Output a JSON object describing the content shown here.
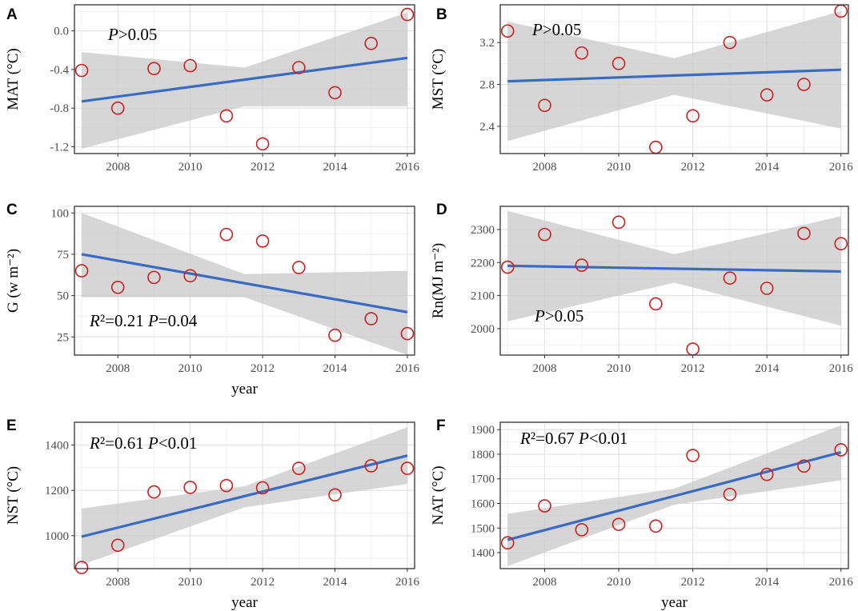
{
  "chart_data": [
    {
      "type": "scatter",
      "panel": "A",
      "ylabel": "MAT (°C)",
      "xlabel": "",
      "annotation": {
        "italic": "P",
        "rest": ">0.05"
      },
      "x": [
        2007,
        2008,
        2009,
        2010,
        2011,
        2012,
        2013,
        2014,
        2015,
        2016
      ],
      "values": [
        -0.41,
        -0.8,
        -0.39,
        -0.36,
        -0.88,
        -1.17,
        -0.38,
        -0.64,
        -0.13,
        0.17
      ],
      "fit": {
        "x": [
          2007,
          2016
        ],
        "y": [
          -0.73,
          -0.28
        ]
      },
      "band": {
        "x": [
          2007,
          2011.5,
          2016
        ],
        "lower": [
          -1.22,
          -0.78,
          -0.78
        ],
        "upper": [
          -0.22,
          -0.38,
          0.19
        ]
      },
      "xlim": [
        2006.8,
        2016.2
      ],
      "ylim": [
        -1.27,
        0.27
      ],
      "xticks": [
        2008,
        2010,
        2012,
        2014,
        2016
      ],
      "yticks": [
        0.0,
        -0.4,
        -0.8,
        -1.2
      ],
      "ytick_labels": [
        "0.0",
        "-0.4",
        "-0.8",
        "-1.2"
      ]
    },
    {
      "type": "scatter",
      "panel": "B",
      "ylabel": "MST (°C)",
      "xlabel": "",
      "annotation": {
        "italic": "P",
        "rest": ">0.05"
      },
      "x": [
        2007,
        2008,
        2009,
        2010,
        2011,
        2012,
        2013,
        2014,
        2015,
        2016
      ],
      "values": [
        3.31,
        2.6,
        3.1,
        3.0,
        2.2,
        2.5,
        3.2,
        2.7,
        2.8,
        3.5
      ],
      "fit": {
        "x": [
          2007,
          2016
        ],
        "y": [
          2.83,
          2.94
        ]
      },
      "band": {
        "x": [
          2007,
          2011.5,
          2016
        ],
        "lower": [
          2.26,
          2.7,
          2.38
        ],
        "upper": [
          3.4,
          3.05,
          3.5
        ]
      },
      "xlim": [
        2006.8,
        2016.2
      ],
      "ylim": [
        2.14,
        3.56
      ],
      "xticks": [
        2008,
        2010,
        2012,
        2014,
        2016
      ],
      "yticks": [
        3.2,
        2.8,
        2.4
      ],
      "ytick_labels": [
        "3.2",
        "2.8",
        "2.4"
      ]
    },
    {
      "type": "scatter",
      "panel": "C",
      "ylabel": "G (w m⁻²)",
      "xlabel": "year",
      "annotation": {
        "italic": "R",
        "rest": "²=0.21 ",
        "italic2": "P",
        "rest2": "=0.04"
      },
      "x": [
        2007,
        2008,
        2009,
        2010,
        2011,
        2012,
        2013,
        2014,
        2015,
        2016
      ],
      "values": [
        65,
        55,
        61,
        62,
        87,
        83,
        67,
        26,
        36,
        27
      ],
      "fit": {
        "x": [
          2007,
          2016
        ],
        "y": [
          75,
          40
        ]
      },
      "band": {
        "x": [
          2007,
          2011.5,
          2016
        ],
        "lower": [
          49,
          49,
          14
        ],
        "upper": [
          100,
          63,
          65
        ]
      },
      "xlim": [
        2006.8,
        2016.2
      ],
      "ylim": [
        14,
        104
      ],
      "xticks": [
        2008,
        2010,
        2012,
        2014,
        2016
      ],
      "yticks": [
        100,
        75,
        50,
        25
      ],
      "ytick_labels": [
        "100",
        "75",
        "50",
        "25"
      ]
    },
    {
      "type": "scatter",
      "panel": "D",
      "ylabel": "Rn(MJ m⁻²)",
      "xlabel": "",
      "annotation": {
        "italic": "P",
        "rest": ">0.05"
      },
      "x": [
        2007,
        2008,
        2009,
        2010,
        2011,
        2012,
        2013,
        2014,
        2015,
        2016
      ],
      "values": [
        2186,
        2285,
        2192,
        2322,
        2075,
        1938,
        2153,
        2122,
        2288,
        2257
      ],
      "fit": {
        "x": [
          2007,
          2016
        ],
        "y": [
          2190,
          2173
        ]
      },
      "band": {
        "x": [
          2007,
          2011.5,
          2016
        ],
        "lower": [
          2022,
          2139,
          2009
        ],
        "upper": [
          2356,
          2225,
          2340
        ]
      },
      "xlim": [
        2006.8,
        2016.2
      ],
      "ylim": [
        1920,
        2370
      ],
      "xticks": [
        2008,
        2010,
        2012,
        2014,
        2016
      ],
      "yticks": [
        2300,
        2200,
        2100,
        2000
      ],
      "ytick_labels": [
        "2300",
        "2200",
        "2100",
        "2000"
      ]
    },
    {
      "type": "scatter",
      "panel": "E",
      "ylabel": "NST (°C)",
      "xlabel": "year",
      "annotation": {
        "italic": "R",
        "rest": "²=0.61 ",
        "italic2": "P",
        "rest2": "<0.01"
      },
      "x": [
        2007,
        2008,
        2009,
        2010,
        2011,
        2012,
        2013,
        2014,
        2015,
        2016
      ],
      "values": [
        860,
        958,
        1193,
        1213,
        1221,
        1211,
        1297,
        1180,
        1308,
        1297
      ],
      "fit": {
        "x": [
          2007,
          2016
        ],
        "y": [
          996,
          1353
        ]
      },
      "band": {
        "x": [
          2007,
          2011.5,
          2016
        ],
        "lower": [
          872,
          1125,
          1228
        ],
        "upper": [
          1120,
          1218,
          1478
        ]
      },
      "xlim": [
        2006.8,
        2016.2
      ],
      "ylim": [
        855,
        1500
      ],
      "xticks": [
        2008,
        2010,
        2012,
        2014,
        2016
      ],
      "yticks": [
        1400,
        1200,
        1000
      ],
      "ytick_labels": [
        "1400",
        "1200",
        "1000"
      ]
    },
    {
      "type": "scatter",
      "panel": "F",
      "ylabel": "NAT (°C)",
      "xlabel": "year",
      "annotation": {
        "italic": "R",
        "rest": "²=0.67 ",
        "italic2": "P",
        "rest2": "<0.01"
      },
      "x": [
        2007,
        2008,
        2009,
        2010,
        2011,
        2012,
        2013,
        2014,
        2015,
        2016
      ],
      "values": [
        1440,
        1590,
        1493,
        1515,
        1508,
        1795,
        1637,
        1718,
        1752,
        1818
      ],
      "fit": {
        "x": [
          2007,
          2016
        ],
        "y": [
          1452,
          1808
        ]
      },
      "band": {
        "x": [
          2007,
          2011.5,
          2016
        ],
        "lower": [
          1345,
          1595,
          1694
        ],
        "upper": [
          1558,
          1660,
          1918
        ]
      },
      "xlim": [
        2006.8,
        2016.2
      ],
      "ylim": [
        1335,
        1930
      ],
      "xticks": [
        2008,
        2010,
        2012,
        2014,
        2016
      ],
      "yticks": [
        1900,
        1800,
        1700,
        1600,
        1500,
        1400
      ],
      "ytick_labels": [
        "1900",
        "1800",
        "1700",
        "1600",
        "1500",
        "1400"
      ]
    }
  ],
  "colors": {
    "points": "#cc1f1f",
    "fit": "#3a6bc4",
    "band": "#c8c8c8",
    "grid_major": "#e4e4e4",
    "grid_minor": "#f1f1f1",
    "frame": "#333333",
    "tick_text": "#4d4d4d"
  }
}
